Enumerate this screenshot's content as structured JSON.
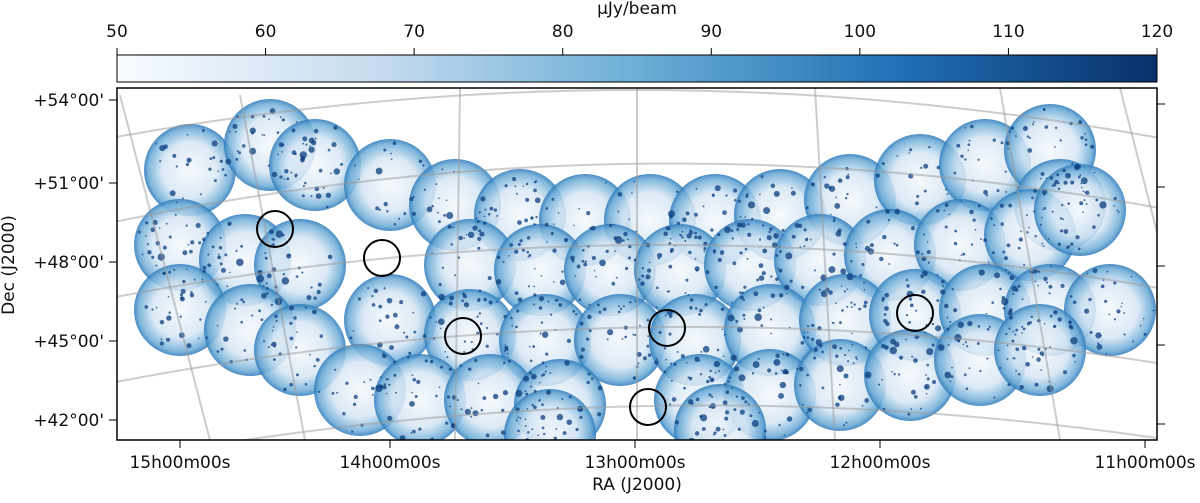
{
  "colorbar": {
    "label": "μJy/beam",
    "lim": [
      50,
      120
    ],
    "ticks": [
      50,
      60,
      70,
      80,
      90,
      100,
      110,
      120
    ]
  },
  "axes": {
    "x_label": "RA (J2000)",
    "y_label": "Dec (J2000)",
    "x_ticks": [
      "15h00m00s",
      "14h00m00s",
      "13h00m00s",
      "12h00m00s",
      "11h00m00s"
    ],
    "y_ticks": [
      "+54°00'",
      "+51°00'",
      "+48°00'",
      "+45°00'",
      "+42°00'"
    ]
  }
}
